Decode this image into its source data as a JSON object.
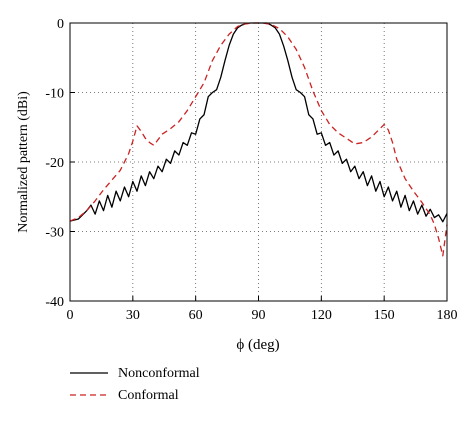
{
  "chart_data": {
    "type": "line",
    "title": "",
    "xlabel": "ϕ (deg)",
    "ylabel": "Normalized pattern (dBi)",
    "xlim": [
      0,
      180
    ],
    "ylim": [
      -40,
      0
    ],
    "xticks": [
      0,
      30,
      60,
      90,
      120,
      150,
      180
    ],
    "yticks": [
      0,
      -10,
      -20,
      -30,
      -40
    ],
    "grid": "dotted",
    "legend_position": "below-left",
    "series": [
      {
        "name": "Nonconformal",
        "color": "#000000",
        "dash": "solid",
        "x": [
          0,
          4,
          8,
          10,
          12,
          14,
          16,
          18,
          20,
          22,
          24,
          26,
          28,
          30,
          32,
          34,
          36,
          38,
          40,
          42,
          44,
          46,
          48,
          50,
          52,
          54,
          56,
          58,
          60,
          62,
          64,
          66,
          68,
          70,
          72,
          74,
          76,
          78,
          80,
          82,
          84,
          86,
          88,
          90,
          92,
          94,
          96,
          98,
          100,
          102,
          104,
          106,
          108,
          110,
          112,
          114,
          116,
          118,
          120,
          122,
          124,
          126,
          128,
          130,
          132,
          134,
          136,
          138,
          140,
          142,
          144,
          146,
          148,
          150,
          152,
          154,
          156,
          158,
          160,
          162,
          164,
          166,
          168,
          170,
          172,
          174,
          176,
          178,
          180
        ],
        "values": [
          -28.5,
          -28.2,
          -27,
          -26.2,
          -27.5,
          -25.6,
          -27,
          -24.8,
          -26.5,
          -24.2,
          -25.6,
          -23.6,
          -25,
          -22.8,
          -24.2,
          -22,
          -23.4,
          -21.4,
          -22.4,
          -20.6,
          -21.4,
          -19.6,
          -20.2,
          -18.4,
          -19,
          -17.2,
          -17.6,
          -15.8,
          -16,
          -13.8,
          -13.2,
          -10.6,
          -10,
          -9.6,
          -7.8,
          -5.4,
          -3.2,
          -1.6,
          -0.7,
          -0.3,
          -0.1,
          0,
          0,
          0,
          0,
          0,
          -0.3,
          -0.7,
          -1.6,
          -3.3,
          -5.4,
          -7.8,
          -9.6,
          -10,
          -10.6,
          -13.2,
          -13.8,
          -16,
          -15.8,
          -17.6,
          -17.2,
          -19,
          -18.4,
          -20.2,
          -19.6,
          -21.4,
          -20.6,
          -22.4,
          -21.4,
          -23.4,
          -22,
          -24.2,
          -22.8,
          -25,
          -23.6,
          -25.6,
          -24.2,
          -26.5,
          -24.8,
          -27,
          -25.6,
          -27.5,
          -26.2,
          -27.8,
          -26.8,
          -28,
          -27.6,
          -28.6,
          -27.4
        ]
      },
      {
        "name": "Conformal",
        "color": "#cc2222",
        "dash": "dashed",
        "x": [
          0,
          4,
          8,
          12,
          16,
          20,
          24,
          28,
          30,
          32,
          34,
          36,
          38,
          40,
          42,
          44,
          48,
          52,
          56,
          60,
          64,
          68,
          72,
          76,
          80,
          84,
          88,
          90,
          92,
          96,
          100,
          104,
          108,
          112,
          116,
          120,
          124,
          128,
          132,
          136,
          140,
          144,
          146,
          148,
          150,
          152,
          154,
          156,
          160,
          164,
          168,
          172,
          174,
          176,
          178,
          180
        ],
        "values": [
          -28.5,
          -28,
          -27,
          -25.6,
          -24,
          -22.6,
          -21.2,
          -18.8,
          -17,
          -14.8,
          -15.6,
          -16.6,
          -17.2,
          -17.6,
          -16.8,
          -16,
          -15.2,
          -14.2,
          -12.6,
          -10.6,
          -8.6,
          -5.4,
          -3.2,
          -1.6,
          -0.5,
          -0.1,
          0,
          0,
          0,
          -0.2,
          -0.8,
          -2,
          -3.8,
          -6.4,
          -9.8,
          -12.6,
          -14.6,
          -15.8,
          -16.6,
          -17.4,
          -17.2,
          -16.4,
          -15.8,
          -15.2,
          -14.6,
          -15.4,
          -17.2,
          -19.6,
          -22.4,
          -24.2,
          -25.8,
          -27.6,
          -29,
          -31,
          -33.5,
          -29
        ]
      }
    ]
  }
}
